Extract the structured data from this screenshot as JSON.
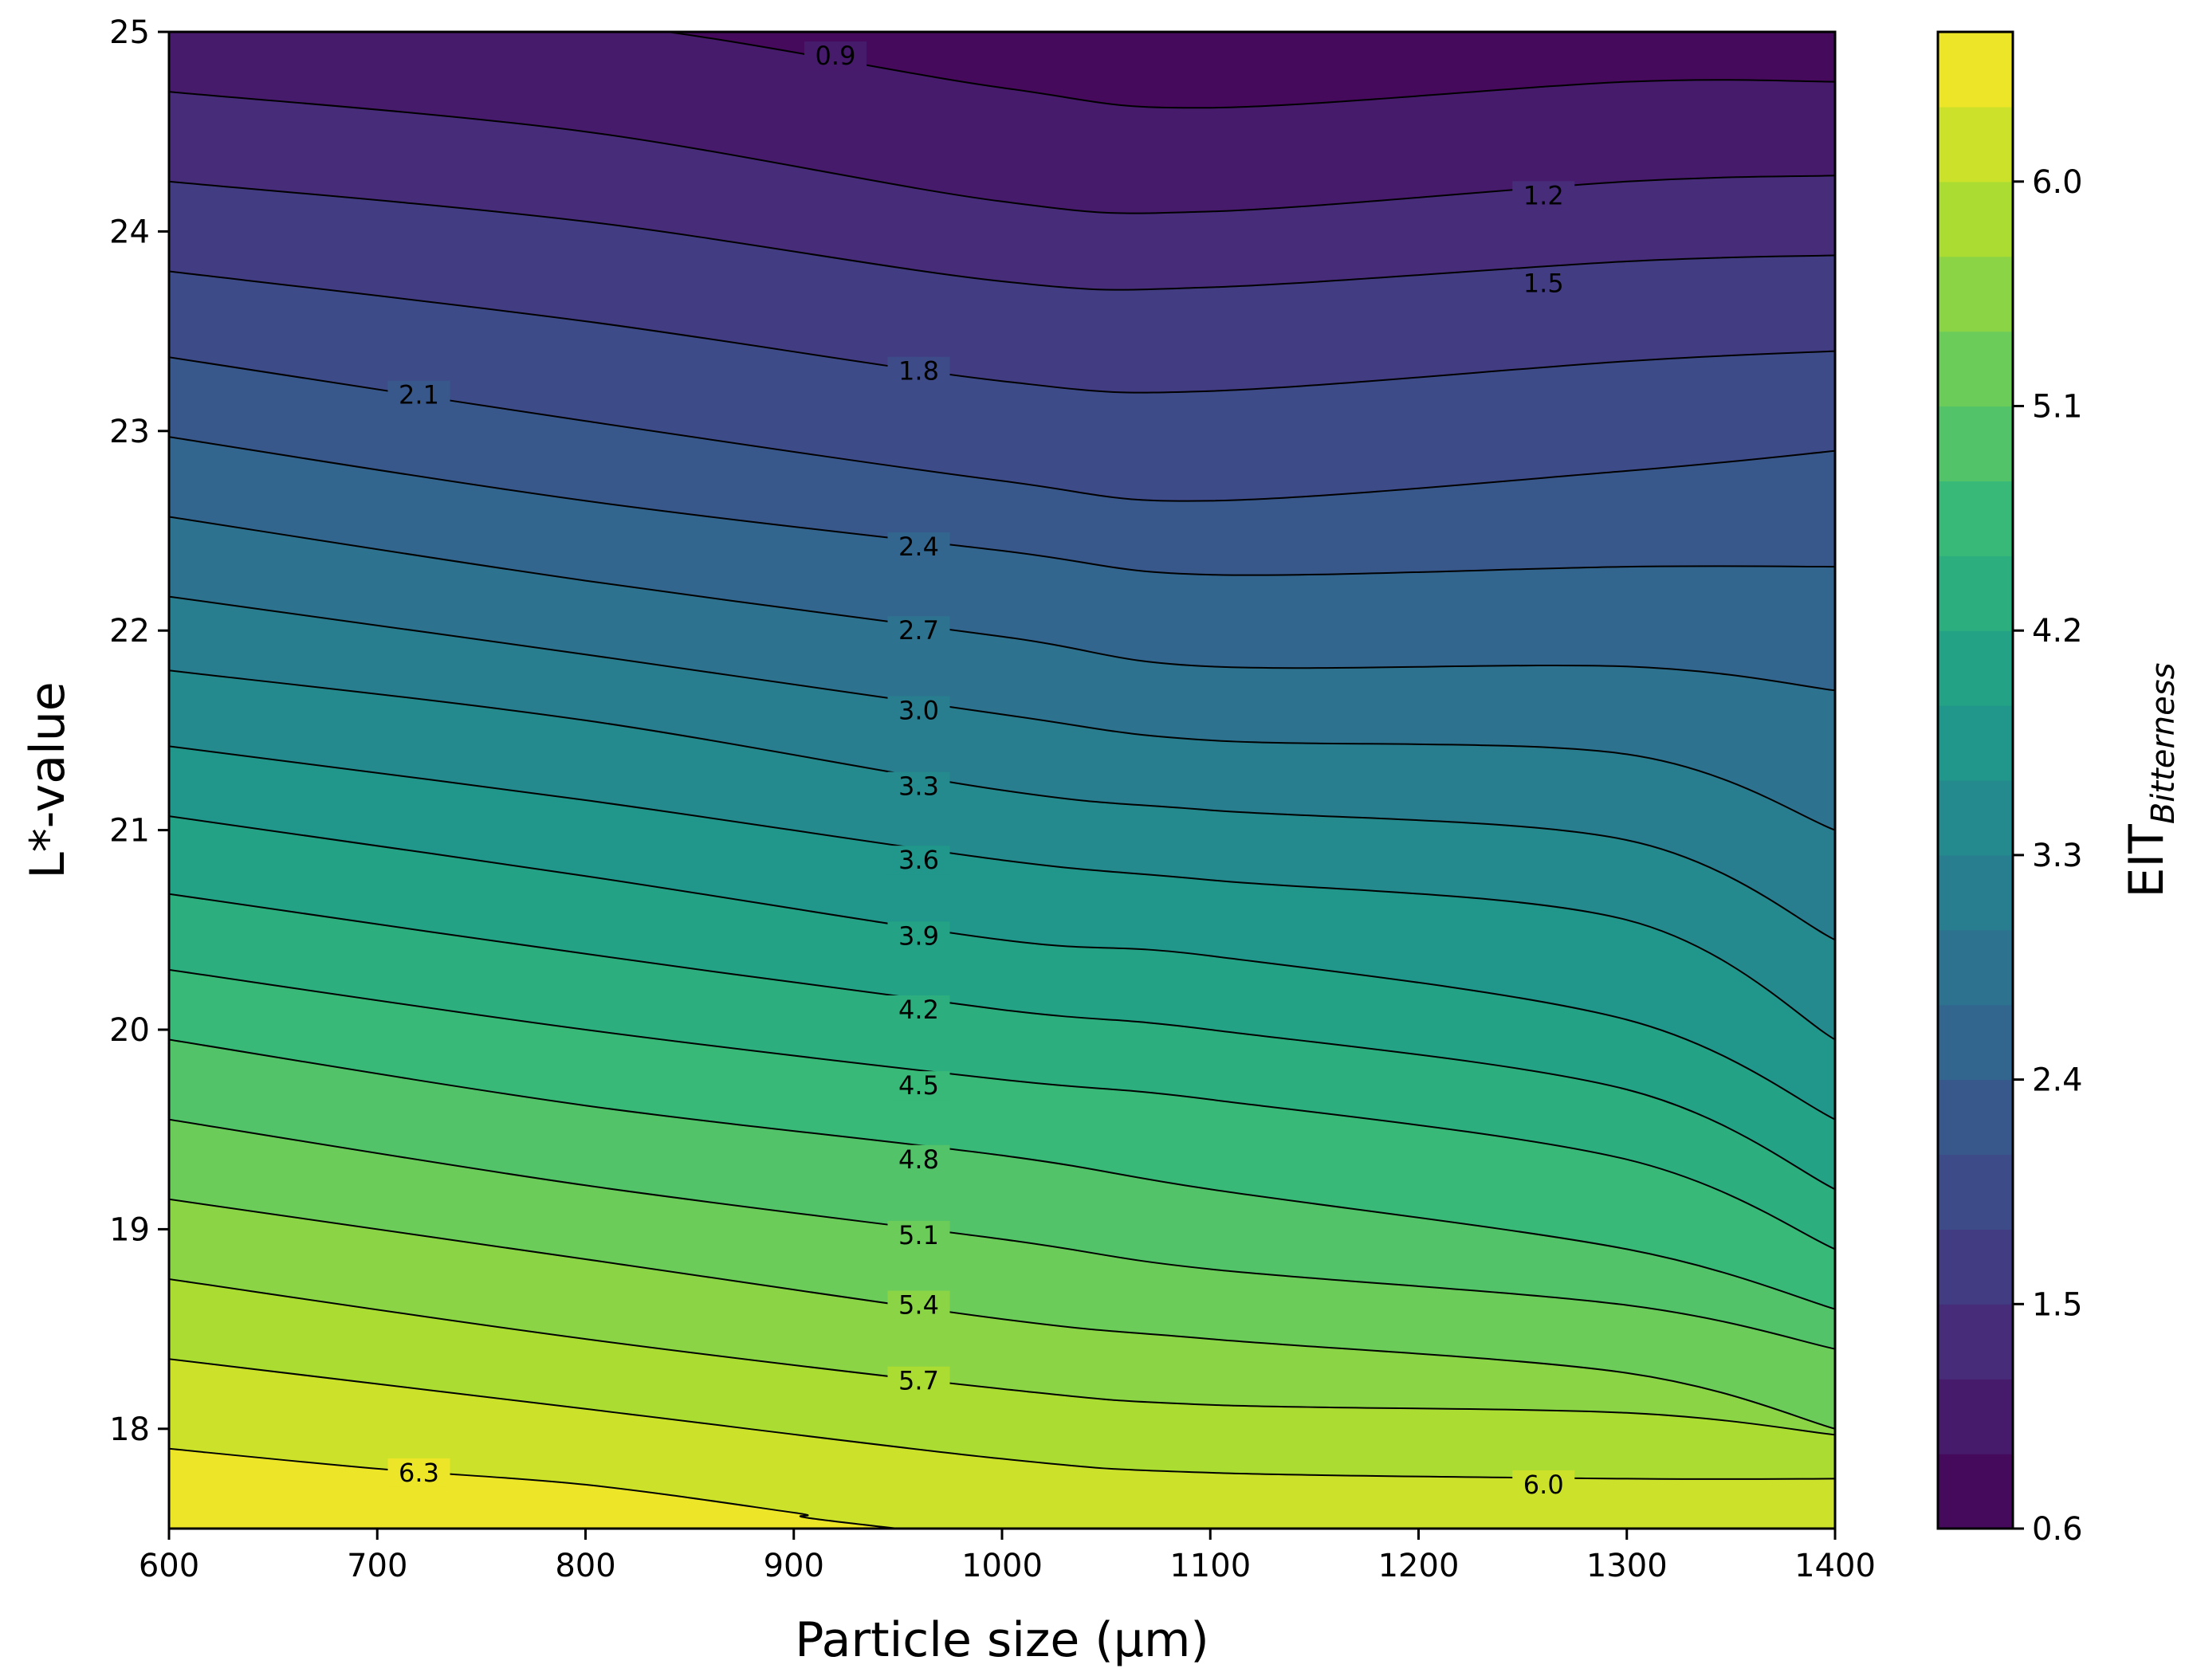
{
  "chart_data": {
    "type": "contour",
    "xlabel": "Particle size (µm)",
    "ylabel": "L*-value",
    "xlim": [
      600,
      1400
    ],
    "ylim": [
      17.5,
      25
    ],
    "xticks": [
      "600",
      "700",
      "800",
      "900",
      "1000",
      "1100",
      "1200",
      "1300",
      "1400"
    ],
    "yticks": [
      "18",
      "19",
      "20",
      "21",
      "22",
      "23",
      "24",
      "25"
    ],
    "colorbar": {
      "label_main": "EIT",
      "label_sub": "Bitterness",
      "range": [
        0.6,
        6.6
      ],
      "levels_step": 0.3,
      "ticks": [
        "0.6",
        "1.5",
        "2.4",
        "3.3",
        "4.2",
        "5.1",
        "6.0"
      ],
      "colormap": "viridis"
    },
    "contour_lines": [
      {
        "level": 0.9,
        "label": "0.9",
        "points": [
          [
            600,
            25.12
          ],
          [
            800,
            25.05
          ],
          [
            1000,
            24.72
          ],
          [
            1100,
            24.62
          ],
          [
            1300,
            24.75
          ],
          [
            1400,
            24.75
          ]
        ],
        "label_at": [
          920,
          24.88
        ]
      },
      {
        "level": 1.2,
        "label": "1.2",
        "points": [
          [
            600,
            24.7
          ],
          [
            800,
            24.5
          ],
          [
            1000,
            24.15
          ],
          [
            1100,
            24.1
          ],
          [
            1300,
            24.25
          ],
          [
            1400,
            24.28
          ]
        ],
        "label_at": [
          1260,
          24.18
        ]
      },
      {
        "level": 1.5,
        "label": "1.5",
        "points": [
          [
            600,
            24.25
          ],
          [
            800,
            24.05
          ],
          [
            1000,
            23.75
          ],
          [
            1100,
            23.72
          ],
          [
            1300,
            23.85
          ],
          [
            1400,
            23.88
          ]
        ],
        "label_at": [
          1260,
          23.74
        ]
      },
      {
        "level": 1.8,
        "label": "1.8",
        "points": [
          [
            600,
            23.8
          ],
          [
            800,
            23.55
          ],
          [
            1000,
            23.25
          ],
          [
            1100,
            23.2
          ],
          [
            1300,
            23.35
          ],
          [
            1400,
            23.4
          ]
        ],
        "label_at": [
          960,
          23.3
        ]
      },
      {
        "level": 2.1,
        "label": "2.1",
        "points": [
          [
            600,
            23.37
          ],
          [
            800,
            23.05
          ],
          [
            1000,
            22.75
          ],
          [
            1100,
            22.65
          ],
          [
            1300,
            22.8
          ],
          [
            1400,
            22.9
          ]
        ],
        "label_at": [
          720,
          23.18
        ]
      },
      {
        "level": 2.4,
        "label": "2.4",
        "points": [
          [
            600,
            22.97
          ],
          [
            800,
            22.65
          ],
          [
            1000,
            22.4
          ],
          [
            1100,
            22.28
          ],
          [
            1300,
            22.32
          ],
          [
            1400,
            22.32
          ]
        ],
        "label_at": [
          960,
          22.42
        ]
      },
      {
        "level": 2.7,
        "label": "2.7",
        "points": [
          [
            600,
            22.57
          ],
          [
            800,
            22.25
          ],
          [
            1000,
            21.97
          ],
          [
            1100,
            21.82
          ],
          [
            1300,
            21.82
          ],
          [
            1400,
            21.7
          ]
        ],
        "label_at": [
          960,
          22.0
        ]
      },
      {
        "level": 3.0,
        "label": "3.0",
        "points": [
          [
            600,
            22.17
          ],
          [
            800,
            21.88
          ],
          [
            1000,
            21.58
          ],
          [
            1100,
            21.45
          ],
          [
            1300,
            21.38
          ],
          [
            1400,
            21.0
          ]
        ],
        "label_at": [
          960,
          21.6
        ]
      },
      {
        "level": 3.3,
        "label": "3.3",
        "points": [
          [
            600,
            21.8
          ],
          [
            800,
            21.55
          ],
          [
            1000,
            21.2
          ],
          [
            1100,
            21.1
          ],
          [
            1300,
            20.95
          ],
          [
            1400,
            20.45
          ]
        ],
        "label_at": [
          960,
          21.22
        ]
      },
      {
        "level": 3.6,
        "label": "3.6",
        "points": [
          [
            600,
            21.42
          ],
          [
            800,
            21.15
          ],
          [
            1000,
            20.85
          ],
          [
            1100,
            20.75
          ],
          [
            1300,
            20.55
          ],
          [
            1400,
            19.95
          ]
        ],
        "label_at": [
          960,
          20.85
        ]
      },
      {
        "level": 3.9,
        "label": "3.9",
        "points": [
          [
            600,
            21.07
          ],
          [
            800,
            20.77
          ],
          [
            1000,
            20.45
          ],
          [
            1100,
            20.37
          ],
          [
            1300,
            20.05
          ],
          [
            1400,
            19.55
          ]
        ],
        "label_at": [
          960,
          20.47
        ]
      },
      {
        "level": 4.2,
        "label": "4.2",
        "points": [
          [
            600,
            20.68
          ],
          [
            800,
            20.38
          ],
          [
            1000,
            20.1
          ],
          [
            1100,
            20.0
          ],
          [
            1300,
            19.7
          ],
          [
            1400,
            19.2
          ]
        ],
        "label_at": [
          960,
          20.1
        ]
      },
      {
        "level": 4.5,
        "label": "4.5",
        "points": [
          [
            600,
            20.3
          ],
          [
            800,
            20.0
          ],
          [
            1000,
            19.75
          ],
          [
            1100,
            19.65
          ],
          [
            1300,
            19.35
          ],
          [
            1400,
            18.9
          ]
        ],
        "label_at": [
          960,
          19.72
        ]
      },
      {
        "level": 4.8,
        "label": "4.8",
        "points": [
          [
            600,
            19.95
          ],
          [
            800,
            19.62
          ],
          [
            1000,
            19.37
          ],
          [
            1100,
            19.2
          ],
          [
            1300,
            18.9
          ],
          [
            1400,
            18.6
          ]
        ],
        "label_at": [
          960,
          19.35
        ]
      },
      {
        "level": 5.1,
        "label": "5.1",
        "points": [
          [
            600,
            19.55
          ],
          [
            800,
            19.22
          ],
          [
            1000,
            18.95
          ],
          [
            1100,
            18.8
          ],
          [
            1300,
            18.62
          ],
          [
            1400,
            18.4
          ]
        ],
        "label_at": [
          960,
          18.97
        ]
      },
      {
        "level": 5.4,
        "label": "5.4",
        "points": [
          [
            600,
            19.15
          ],
          [
            800,
            18.85
          ],
          [
            1000,
            18.55
          ],
          [
            1100,
            18.45
          ],
          [
            1300,
            18.28
          ],
          [
            1400,
            18.0
          ]
        ],
        "label_at": [
          960,
          18.62
        ]
      },
      {
        "level": 5.7,
        "label": "5.7",
        "points": [
          [
            600,
            18.75
          ],
          [
            800,
            18.45
          ],
          [
            1000,
            18.2
          ],
          [
            1100,
            18.12
          ],
          [
            1300,
            18.08
          ],
          [
            1400,
            17.97
          ]
        ],
        "label_at": [
          960,
          18.24
        ]
      },
      {
        "level": 6.0,
        "label": "6.0",
        "points": [
          [
            600,
            18.35
          ],
          [
            800,
            18.1
          ],
          [
            1000,
            17.85
          ],
          [
            1100,
            17.78
          ],
          [
            1300,
            17.75
          ],
          [
            1400,
            17.75
          ]
        ],
        "label_at": [
          1260,
          17.72
        ]
      },
      {
        "level": 6.3,
        "label": "6.3",
        "points": [
          [
            600,
            17.9
          ],
          [
            700,
            17.8
          ],
          [
            800,
            17.72
          ],
          [
            900,
            17.58
          ],
          [
            950,
            17.5
          ]
        ],
        "label_at": [
          720,
          17.78
        ]
      }
    ]
  }
}
